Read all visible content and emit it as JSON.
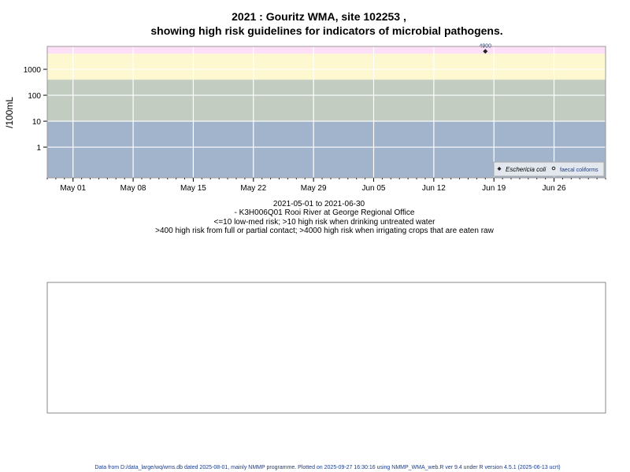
{
  "chart_data": {
    "type": "scatter",
    "title": [
      "2021 : Gouritz WMA, site 102253 ,",
      "showing high risk guidelines for indicators of microbial pathogens."
    ],
    "ylabel": "/100mL",
    "y_scale": "log",
    "ylim": [
      0.066,
      7600
    ],
    "y_ticks": [
      1,
      10,
      100,
      1000
    ],
    "y_tick_labels": [
      "1",
      "10",
      "100",
      "1000"
    ],
    "xlim": [
      "2021-04-28",
      "2021-07-02"
    ],
    "x_ticks": [
      "2021-05-01",
      "2021-05-08",
      "2021-05-15",
      "2021-05-22",
      "2021-05-29",
      "2021-06-05",
      "2021-06-12",
      "2021-06-19",
      "2021-06-26"
    ],
    "x_tick_labels": [
      "May 01",
      "May 08",
      "May 15",
      "May 22",
      "May 29",
      "Jun 05",
      "Jun 12",
      "Jun 19",
      "Jun 26"
    ],
    "grid": true,
    "bands": [
      {
        "from": 0.066,
        "to": 10,
        "color": "#a2b3cc"
      },
      {
        "from": 10,
        "to": 400,
        "color": "#c2ccc0"
      },
      {
        "from": 400,
        "to": 4000,
        "color": "#fdf8cf"
      },
      {
        "from": 4000,
        "to": 7600,
        "color": "#fde0f8"
      }
    ],
    "series": [
      {
        "name": "Eschericia coli",
        "marker": "filled-diamond",
        "points": [
          {
            "x": "2021-06-18",
            "y": 4900,
            "label": "4900"
          }
        ]
      },
      {
        "name": "faecal coliforms",
        "marker": "open-circle",
        "points": []
      }
    ],
    "legend": "bottom-right",
    "caption": [
      "2021-05-01 to 2021-06-30",
      "- K3H006Q01 Rooi River at George Regional Office",
      "<=10 low-med risk; >10 high risk when drinking untreated water",
      ">400 high risk from full or partial contact; >4000 high risk when irrigating crops that are eaten raw"
    ]
  },
  "footer": "Data from D:/data_large/wq/wms.db dated 2025-08-01, mainly NMMP programme. Plotted on 2025-09-27 16:30:16 using NMMP_WMA_web.R ver 9.4 under R version 4.5.1 (2025-06-13 ucrt)"
}
